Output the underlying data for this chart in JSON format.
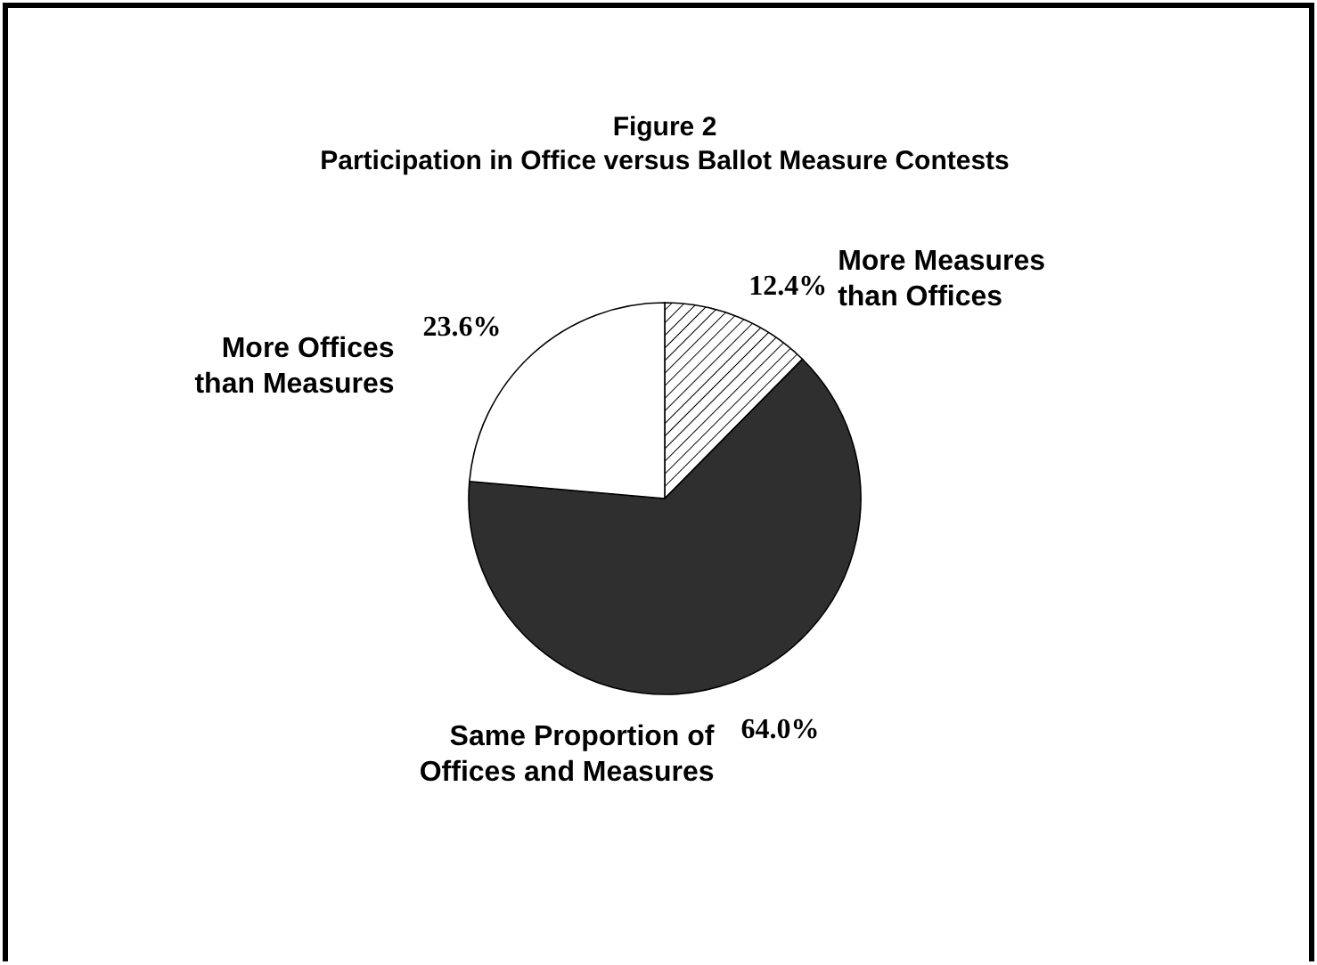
{
  "chart_data": {
    "type": "pie",
    "title": "Figure 2",
    "subtitle": "Participation in Office versus Ballot Measure Contests",
    "categories": [
      "More Measures than Offices",
      "Same Proportion of Offices and Measures",
      "More Offices than Measures"
    ],
    "values": [
      12.4,
      64.0,
      23.6
    ],
    "colors": [
      "#000000",
      "#2f2f2f",
      "#ffffff"
    ],
    "value_labels": [
      "12.4%",
      "64.0%",
      "23.6%"
    ]
  }
}
